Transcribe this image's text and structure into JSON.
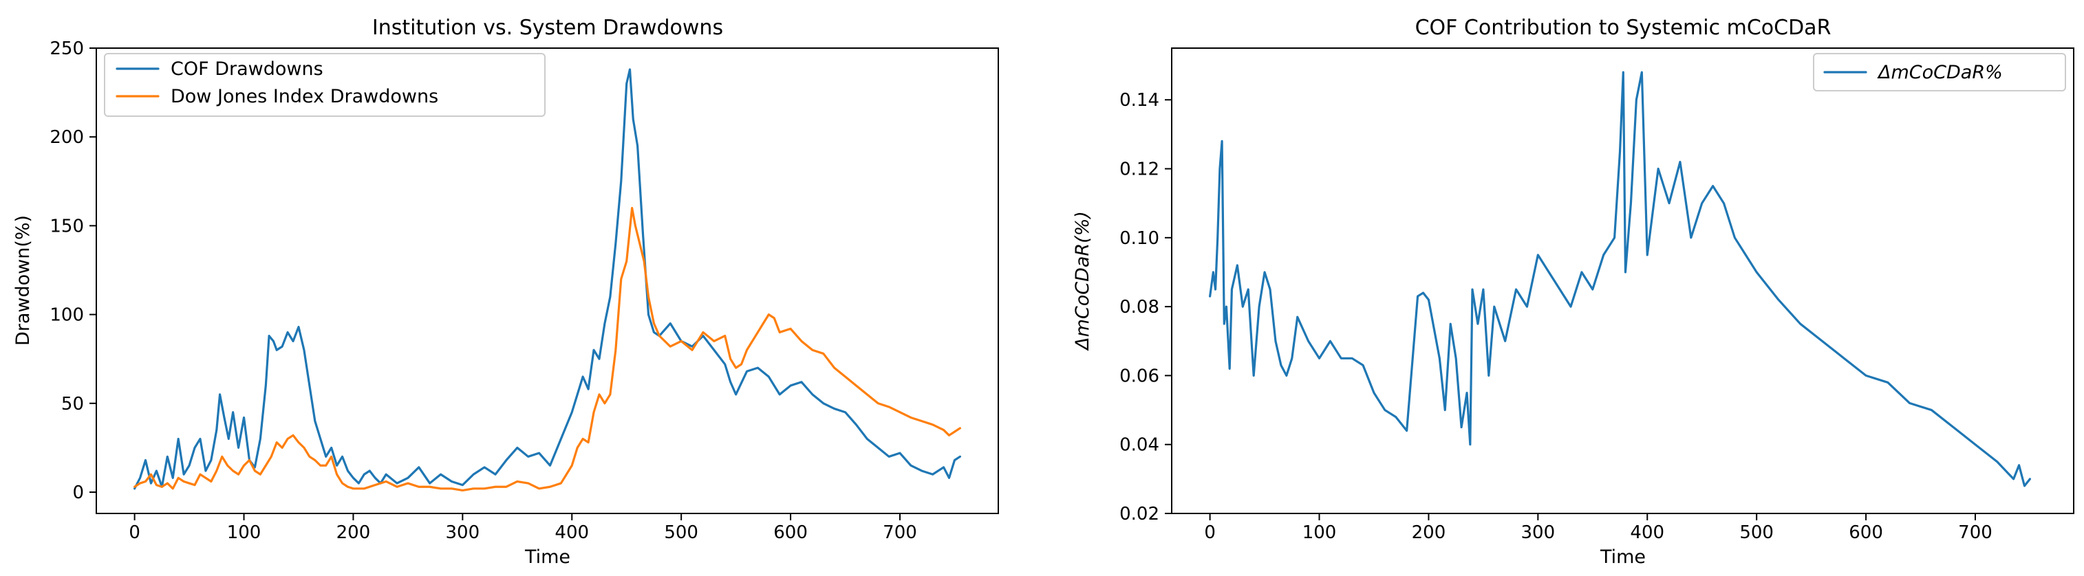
{
  "chart_data": [
    {
      "type": "line",
      "title": "Institution vs. System Drawdowns",
      "xlabel": "Time",
      "ylabel": "Drawdown(%)",
      "xlim": [
        -35,
        790
      ],
      "ylim": [
        -12,
        250
      ],
      "x_ticks": [
        0,
        100,
        200,
        300,
        400,
        500,
        600,
        700
      ],
      "y_ticks": [
        0,
        50,
        100,
        150,
        200,
        250
      ],
      "x_tick_labels": [
        "0",
        "100",
        "200",
        "300",
        "400",
        "500",
        "600",
        "700"
      ],
      "y_tick_labels": [
        "0",
        "50",
        "100",
        "150",
        "200",
        "250"
      ],
      "grid": false,
      "legend_position": "top-left",
      "series": [
        {
          "name": "COF Drawdowns",
          "color": "#1f77b4",
          "x": [
            0,
            5,
            10,
            15,
            20,
            25,
            30,
            35,
            40,
            45,
            50,
            55,
            60,
            65,
            70,
            75,
            78,
            82,
            86,
            90,
            95,
            100,
            105,
            110,
            115,
            120,
            123,
            127,
            130,
            135,
            140,
            145,
            150,
            155,
            160,
            165,
            170,
            175,
            180,
            185,
            190,
            195,
            200,
            205,
            210,
            215,
            220,
            225,
            230,
            240,
            250,
            260,
            270,
            280,
            290,
            300,
            310,
            320,
            330,
            340,
            350,
            360,
            370,
            380,
            390,
            400,
            405,
            410,
            415,
            420,
            425,
            430,
            435,
            440,
            445,
            450,
            453,
            456,
            460,
            465,
            470,
            475,
            480,
            490,
            500,
            510,
            520,
            530,
            540,
            545,
            550,
            560,
            570,
            580,
            590,
            600,
            610,
            620,
            630,
            640,
            650,
            660,
            670,
            680,
            690,
            700,
            710,
            720,
            730,
            740,
            745,
            750,
            755
          ],
          "y": [
            2,
            8,
            18,
            5,
            12,
            3,
            20,
            8,
            30,
            10,
            15,
            25,
            30,
            12,
            18,
            35,
            55,
            42,
            30,
            45,
            25,
            42,
            18,
            14,
            30,
            60,
            88,
            85,
            80,
            82,
            90,
            85,
            93,
            80,
            60,
            40,
            30,
            20,
            25,
            15,
            20,
            12,
            8,
            5,
            10,
            12,
            8,
            5,
            10,
            5,
            8,
            14,
            5,
            10,
            6,
            4,
            10,
            14,
            10,
            18,
            25,
            20,
            22,
            15,
            30,
            45,
            55,
            65,
            58,
            80,
            75,
            95,
            110,
            140,
            175,
            230,
            238,
            210,
            195,
            145,
            100,
            90,
            88,
            95,
            85,
            82,
            88,
            80,
            72,
            62,
            55,
            68,
            70,
            65,
            55,
            60,
            62,
            55,
            50,
            47,
            45,
            38,
            30,
            25,
            20,
            22,
            15,
            12,
            10,
            14,
            8,
            18,
            20
          ]
        },
        {
          "name": "Dow Jones Index Drawdowns",
          "color": "#ff7f0e",
          "x": [
            0,
            5,
            10,
            15,
            20,
            25,
            30,
            35,
            40,
            45,
            50,
            55,
            60,
            65,
            70,
            75,
            80,
            85,
            90,
            95,
            100,
            105,
            110,
            115,
            120,
            125,
            130,
            135,
            140,
            145,
            150,
            155,
            160,
            165,
            170,
            175,
            180,
            185,
            190,
            195,
            200,
            210,
            220,
            230,
            240,
            250,
            260,
            270,
            280,
            290,
            300,
            310,
            320,
            330,
            340,
            350,
            360,
            370,
            380,
            390,
            400,
            405,
            410,
            415,
            420,
            425,
            430,
            435,
            440,
            445,
            450,
            455,
            458,
            462,
            466,
            470,
            475,
            480,
            490,
            500,
            510,
            520,
            530,
            540,
            545,
            550,
            555,
            560,
            570,
            575,
            580,
            585,
            590,
            600,
            610,
            620,
            630,
            640,
            650,
            660,
            670,
            680,
            690,
            700,
            710,
            720,
            730,
            740,
            745,
            750,
            755
          ],
          "y": [
            3,
            5,
            6,
            10,
            4,
            3,
            5,
            2,
            8,
            6,
            5,
            4,
            10,
            8,
            6,
            12,
            20,
            15,
            12,
            10,
            15,
            18,
            12,
            10,
            15,
            20,
            28,
            25,
            30,
            32,
            28,
            25,
            20,
            18,
            15,
            15,
            20,
            10,
            5,
            3,
            2,
            2,
            4,
            6,
            3,
            5,
            3,
            3,
            2,
            2,
            1,
            2,
            2,
            3,
            3,
            6,
            5,
            2,
            3,
            5,
            15,
            25,
            30,
            28,
            45,
            55,
            50,
            55,
            80,
            120,
            130,
            160,
            150,
            140,
            130,
            110,
            95,
            88,
            82,
            85,
            80,
            90,
            85,
            88,
            75,
            70,
            72,
            80,
            90,
            95,
            100,
            98,
            90,
            92,
            85,
            80,
            78,
            70,
            65,
            60,
            55,
            50,
            48,
            45,
            42,
            40,
            38,
            35,
            32,
            34,
            36
          ]
        }
      ]
    },
    {
      "type": "line",
      "title": "COF Contribution to Systemic mCoCDaR",
      "xlabel": "Time",
      "ylabel": "ΔmCoCDaR(%)",
      "xlim": [
        -35,
        790
      ],
      "ylim": [
        0.02,
        0.155
      ],
      "x_ticks": [
        0,
        100,
        200,
        300,
        400,
        500,
        600,
        700
      ],
      "y_ticks": [
        0.02,
        0.04,
        0.06,
        0.08,
        0.1,
        0.12,
        0.14
      ],
      "x_tick_labels": [
        "0",
        "100",
        "200",
        "300",
        "400",
        "500",
        "600",
        "700"
      ],
      "y_tick_labels": [
        "0.02",
        "0.04",
        "0.06",
        "0.08",
        "0.10",
        "0.12",
        "0.14"
      ],
      "grid": false,
      "legend_position": "top-right",
      "series": [
        {
          "name": "ΔmCoCDaR%",
          "color": "#1f77b4",
          "x": [
            0,
            3,
            5,
            7,
            9,
            11,
            13,
            15,
            18,
            20,
            25,
            30,
            35,
            40,
            45,
            50,
            55,
            60,
            65,
            70,
            75,
            80,
            90,
            100,
            110,
            120,
            130,
            140,
            150,
            160,
            170,
            180,
            190,
            195,
            200,
            210,
            215,
            220,
            225,
            230,
            235,
            238,
            240,
            245,
            250,
            255,
            260,
            270,
            280,
            290,
            300,
            310,
            320,
            330,
            340,
            350,
            360,
            370,
            375,
            378,
            380,
            385,
            390,
            395,
            400,
            410,
            420,
            430,
            440,
            450,
            460,
            470,
            480,
            490,
            500,
            520,
            540,
            560,
            580,
            600,
            620,
            640,
            660,
            680,
            700,
            720,
            735,
            740,
            745,
            750
          ],
          "y": [
            0.083,
            0.09,
            0.085,
            0.1,
            0.12,
            0.128,
            0.075,
            0.08,
            0.062,
            0.085,
            0.092,
            0.08,
            0.085,
            0.06,
            0.08,
            0.09,
            0.085,
            0.07,
            0.063,
            0.06,
            0.065,
            0.077,
            0.07,
            0.065,
            0.07,
            0.065,
            0.065,
            0.063,
            0.055,
            0.05,
            0.048,
            0.044,
            0.083,
            0.084,
            0.082,
            0.065,
            0.05,
            0.075,
            0.065,
            0.045,
            0.055,
            0.04,
            0.085,
            0.075,
            0.085,
            0.06,
            0.08,
            0.07,
            0.085,
            0.08,
            0.095,
            0.09,
            0.085,
            0.08,
            0.09,
            0.085,
            0.095,
            0.1,
            0.125,
            0.148,
            0.09,
            0.11,
            0.14,
            0.148,
            0.095,
            0.12,
            0.11,
            0.122,
            0.1,
            0.11,
            0.115,
            0.11,
            0.1,
            0.095,
            0.09,
            0.082,
            0.075,
            0.07,
            0.065,
            0.06,
            0.058,
            0.052,
            0.05,
            0.045,
            0.04,
            0.035,
            0.03,
            0.034,
            0.028,
            0.03
          ]
        }
      ]
    }
  ]
}
